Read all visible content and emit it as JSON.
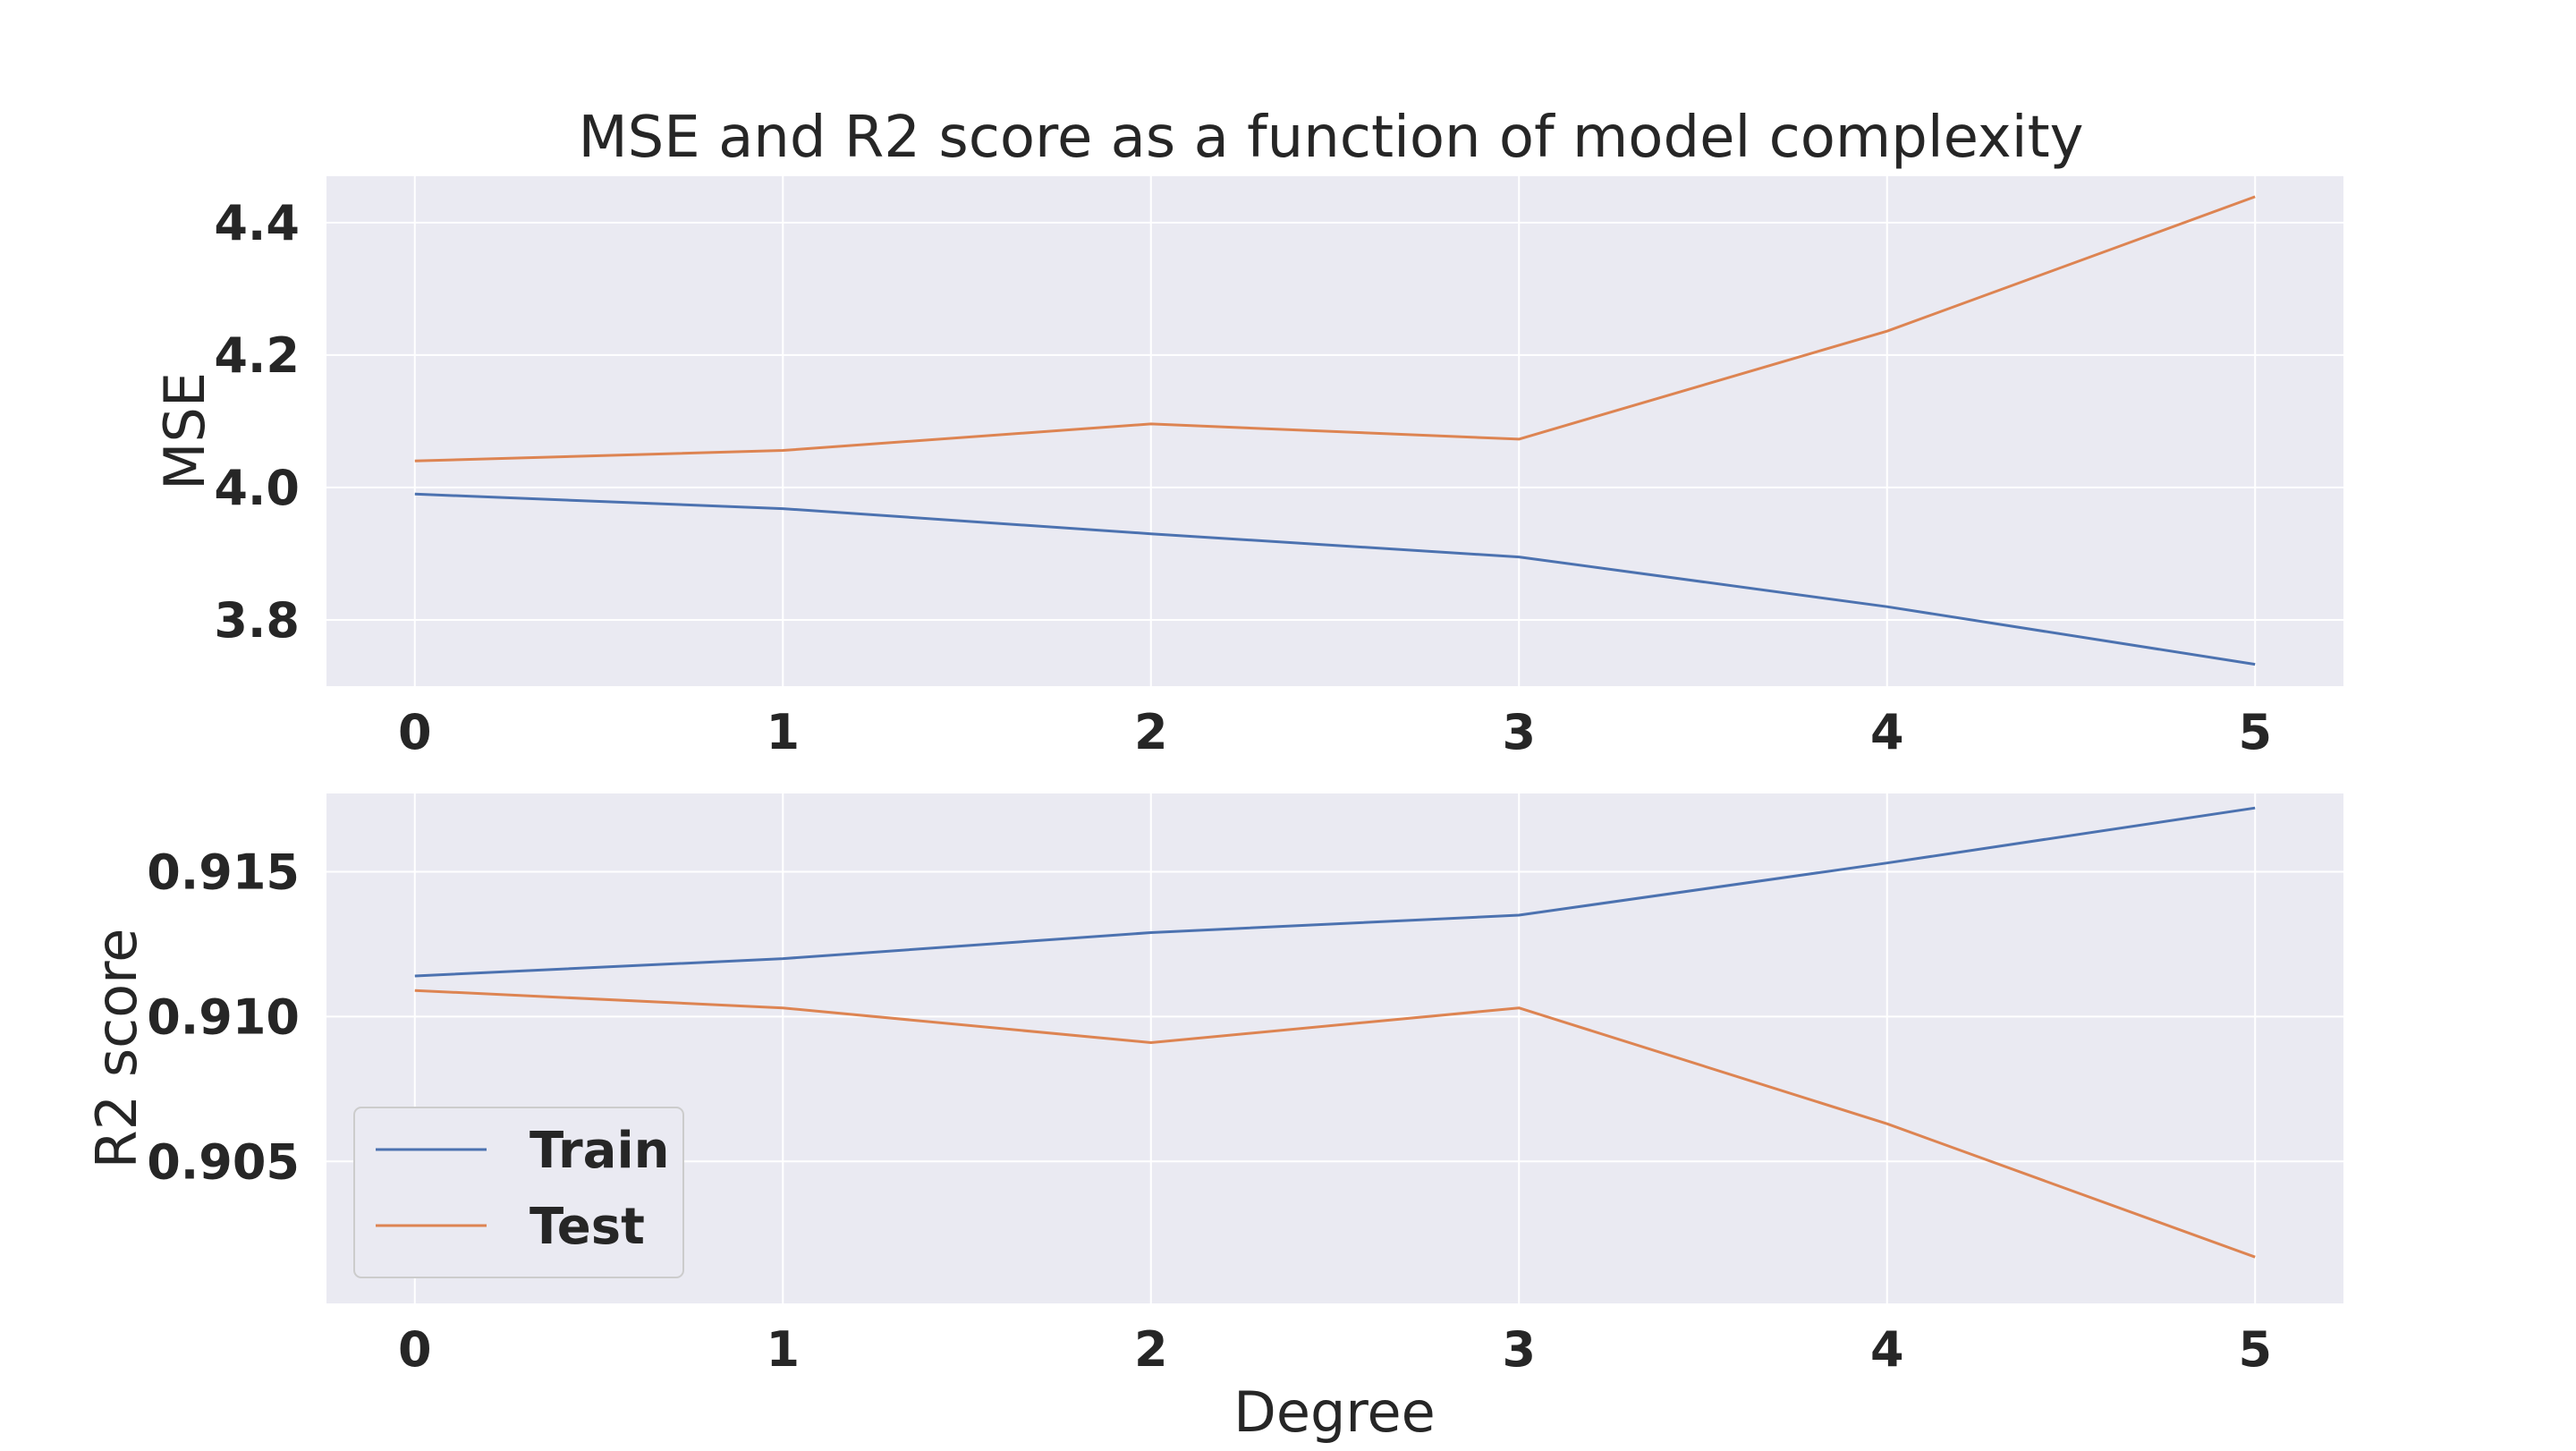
{
  "chart_data": [
    {
      "type": "line",
      "title": "MSE and R2 score as a function of model complexity",
      "xlabel": "",
      "ylabel": "MSE",
      "x": [
        0,
        1,
        2,
        3,
        4,
        5
      ],
      "xlim": [
        -0.24,
        5.24
      ],
      "ylim": [
        3.7,
        4.47
      ],
      "yticks": [
        3.8,
        4.0,
        4.2,
        4.4
      ],
      "ytick_labels": [
        "3.8",
        "4.0",
        "4.2",
        "4.4"
      ],
      "grid": true,
      "series": [
        {
          "name": "Train",
          "color": "#4c72b0",
          "values": [
            3.99,
            3.968,
            3.93,
            3.895,
            3.82,
            3.733
          ]
        },
        {
          "name": "Test",
          "color": "#dd8452",
          "values": [
            4.04,
            4.056,
            4.096,
            4.073,
            4.236,
            4.439
          ]
        }
      ]
    },
    {
      "type": "line",
      "title": "",
      "xlabel": "Degree",
      "ylabel": "R2 score",
      "x": [
        0,
        1,
        2,
        3,
        4,
        5
      ],
      "xlim": [
        -0.24,
        5.24
      ],
      "ylim": [
        0.9001,
        0.9177
      ],
      "yticks": [
        0.905,
        0.91,
        0.915
      ],
      "ytick_labels": [
        "0.905",
        "0.910",
        "0.915"
      ],
      "grid": true,
      "legend": {
        "placement": "lower-left"
      },
      "series": [
        {
          "name": "Train",
          "color": "#4c72b0",
          "values": [
            0.9114,
            0.912,
            0.9129,
            0.9135,
            0.9153,
            0.9172
          ]
        },
        {
          "name": "Test",
          "color": "#dd8452",
          "values": [
            0.9109,
            0.9103,
            0.9091,
            0.9103,
            0.9063,
            0.9017
          ]
        }
      ]
    }
  ],
  "colors": {
    "plot_background": "#eaeaf2",
    "grid": "#ffffff",
    "text": "#262626"
  }
}
